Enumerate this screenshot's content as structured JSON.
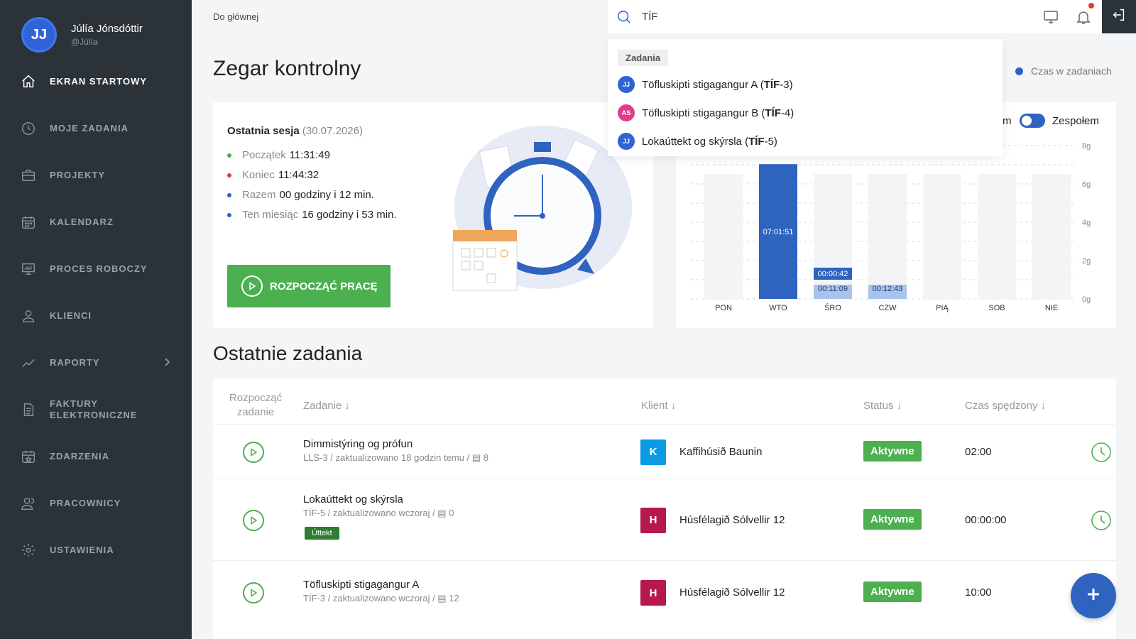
{
  "user": {
    "initials": "JJ",
    "name": "Júlía Jónsdóttir",
    "handle": "@Júlía"
  },
  "nav": [
    {
      "label": "EKRAN STARTOWY",
      "icon": "home-icon"
    },
    {
      "label": "MOJE ZADANIA",
      "icon": "clock-icon"
    },
    {
      "label": "PROJEKTY",
      "icon": "briefcase-icon"
    },
    {
      "label": "KALENDARZ",
      "icon": "calendar-icon"
    },
    {
      "label": "PROCES ROBOCZY",
      "icon": "workflow-board-icon"
    },
    {
      "label": "KLIENCI",
      "icon": "user-icon"
    },
    {
      "label": "RAPORTY",
      "icon": "chart-line-icon"
    },
    {
      "label_line1": "FAKTURY",
      "label_line2": "ELEKTRONICZNE",
      "icon": "document-icon"
    },
    {
      "label": "ZDARZENIA",
      "icon": "calendar-star-icon"
    },
    {
      "label": "PRACOWNICY",
      "icon": "users-icon"
    },
    {
      "label": "USTAWIENIA",
      "icon": "gear-icon"
    }
  ],
  "breadcrumb": "Do głównej",
  "search": {
    "value": "TÍF"
  },
  "dropdown": {
    "section": "Zadania",
    "items": [
      {
        "avatar": "JJ",
        "avatar_color": "#2f63d6",
        "prefix": "Töfluskipti stigagangur A (",
        "bold": "TÍF",
        "suffix": "-3)"
      },
      {
        "avatar": "AS",
        "avatar_color": "#e23d8a",
        "prefix": "Töfluskipti stigagangur B (",
        "bold": "TÍF",
        "suffix": "-4)"
      },
      {
        "avatar": "JJ",
        "avatar_color": "#2f63d6",
        "prefix": "Lokaúttekt og skýrsla (",
        "bold": "TÍF",
        "suffix": "-5)"
      }
    ]
  },
  "page_title": "Zegar kontrolny",
  "legend_top": "Czas w zadaniach",
  "session": {
    "title": "Ostatnia sesja",
    "date": "(30.07.2026)",
    "stats": [
      {
        "k": "Początek",
        "v": "11:31:49",
        "color": "#4caf50"
      },
      {
        "k": "Koniec",
        "v": "11:44:32",
        "color": "#e5392f"
      },
      {
        "k": "Razem",
        "v": "00 godziny i 12 min.",
        "color": "#2f63c0"
      },
      {
        "k": "Ten miesiąc",
        "v": "16 godziny i 53 min.",
        "color": "#2f63c0"
      }
    ],
    "button": "ROZPOCZĄĆ PRACĘ"
  },
  "toggle": {
    "prefix": "m",
    "label": "Zespołem"
  },
  "chart_data": {
    "type": "bar",
    "categories": [
      "PON",
      "WTO",
      "ŚRO",
      "CZW",
      "PIĄ",
      "SOB",
      "NIE"
    ],
    "series": [
      {
        "values": [
          0,
          7.03,
          0.19,
          0.21,
          0,
          0,
          0
        ],
        "color": "#2f63c0"
      },
      {
        "values": [
          0,
          0,
          0.01,
          0,
          0,
          0,
          0
        ],
        "color": "#2f63c0"
      }
    ],
    "labels": [
      "",
      "07:01:51",
      "00:00:42",
      "00:12:43",
      "",
      "",
      ""
    ],
    "labels2": [
      "",
      "",
      "00:11:09",
      "",
      "",
      "",
      ""
    ],
    "yticks": [
      "0g",
      "2g",
      "4g",
      "6g",
      "8g"
    ],
    "ylim": [
      0,
      8
    ],
    "grid": true
  },
  "section_title": "Ostatnie zadania",
  "table": {
    "headers": {
      "start": "Rozpocząć zadanie",
      "task": "Zadanie ↓",
      "client": "Klient ↓",
      "status": "Status ↓",
      "time": "Czas spędzony ↓"
    },
    "rows": [
      {
        "title": "Dimmistýring og prófun",
        "meta": "LLS-3 / zaktualizowano 18 godzin temu / ",
        "comments": "8",
        "badge": "K",
        "badge_color": "#0a9be3",
        "client": "Kaffihúsið Baunin",
        "status": "Aktywne",
        "time": "02:00"
      },
      {
        "title": "Lokaúttekt og skýrsla",
        "meta": "TÍF-5 / zaktualizowano wczoraj / ",
        "comments": "0",
        "chip": "Úttekt",
        "badge": "H",
        "badge_color": "#b5174e",
        "client": "Húsfélagið Sólvellir 12",
        "status": "Aktywne",
        "time": "00:00:00"
      },
      {
        "title": "Töfluskipti stigagangur A",
        "meta": "TÍF-3 / zaktualizowano wczoraj / ",
        "comments": "12",
        "badge": "H",
        "badge_color": "#b5174e",
        "client": "Húsfélagið Sólvellir 12",
        "status": "Aktywne",
        "time": "10:00"
      }
    ]
  }
}
